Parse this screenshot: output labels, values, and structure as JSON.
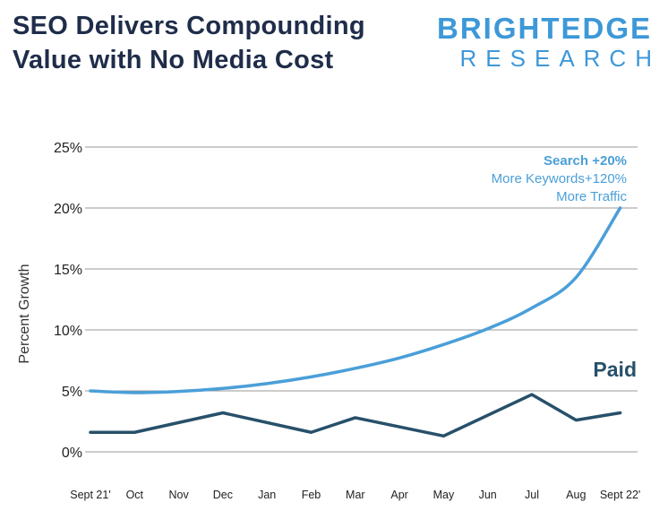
{
  "header": {
    "title_line1": "SEO Delivers Compounding",
    "title_line2": "Value with No Media Cost",
    "brand_main": "BRIGHTEDGE",
    "brand_sub": "RESEARCH"
  },
  "colors": {
    "search": "#4a9fd8",
    "paid": "#27506a",
    "grid": "#9a9a9a",
    "title": "#1f2d4a",
    "brand": "#3d98d8"
  },
  "chart_data": {
    "type": "line",
    "title": "",
    "xlabel": "",
    "ylabel": "Percent Growth",
    "categories": [
      "Sept 21'",
      "Oct",
      "Nov",
      "Dec",
      "Jan",
      "Feb",
      "Mar",
      "Apr",
      "May",
      "Jun",
      "Jul",
      "Aug",
      "Sept 22'"
    ],
    "yticks": [
      "0%",
      "5%",
      "10%",
      "15%",
      "20%",
      "25%"
    ],
    "ylim": [
      0,
      25
    ],
    "grid": true,
    "series": [
      {
        "name": "Search",
        "values": [
          5.0,
          4.85,
          4.95,
          5.2,
          5.6,
          6.15,
          6.85,
          7.7,
          8.8,
          10.1,
          11.8,
          14.3,
          20.0
        ]
      },
      {
        "name": "Paid",
        "values": [
          1.6,
          1.6,
          null,
          3.2,
          null,
          1.6,
          2.8,
          null,
          1.3,
          null,
          4.7,
          2.6,
          3.2
        ]
      }
    ],
    "annotations": {
      "search_line1": "Search +20%",
      "search_line2": "More Keywords+120%",
      "search_line3": "More Traffic",
      "paid_label": "Paid"
    }
  }
}
